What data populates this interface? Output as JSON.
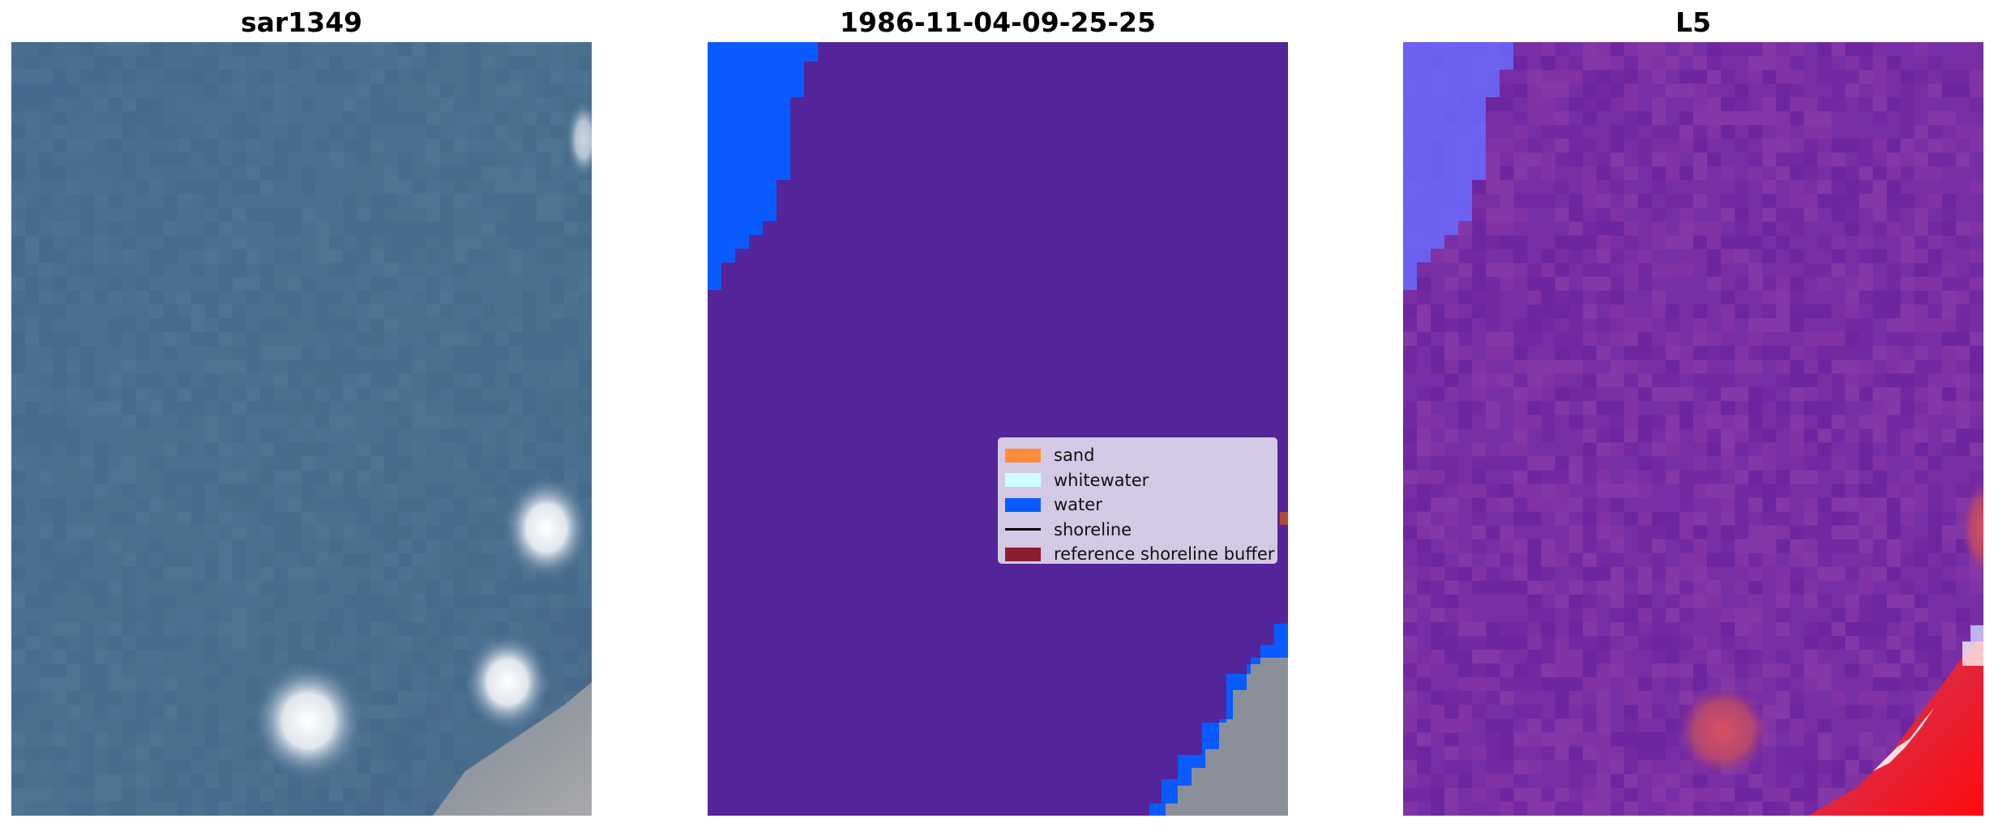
{
  "panels": [
    {
      "title": "sar1349",
      "image": "rgb-satellite-image"
    },
    {
      "title": "1986-11-04-09-25-25",
      "image": "classified-image"
    },
    {
      "title": "L5",
      "image": "false-color-image"
    }
  ],
  "legend": {
    "placement": "center-right",
    "items": [
      {
        "label": "sand",
        "color": "#ff8c3a",
        "kind": "patch"
      },
      {
        "label": "whitewater",
        "color": "#ccffff",
        "kind": "patch"
      },
      {
        "label": "water",
        "color": "#0a5bff",
        "kind": "patch"
      },
      {
        "label": "shoreline",
        "color": "#000000",
        "kind": "line"
      },
      {
        "label": "reference shoreline buffer",
        "color": "#8b1e2e",
        "kind": "patch"
      }
    ]
  },
  "colors": {
    "classified_background": "#54249a",
    "water": "#0a5bff",
    "rgb_ocean": "#4a6e93",
    "false_color_base": "#7a2fa5"
  }
}
